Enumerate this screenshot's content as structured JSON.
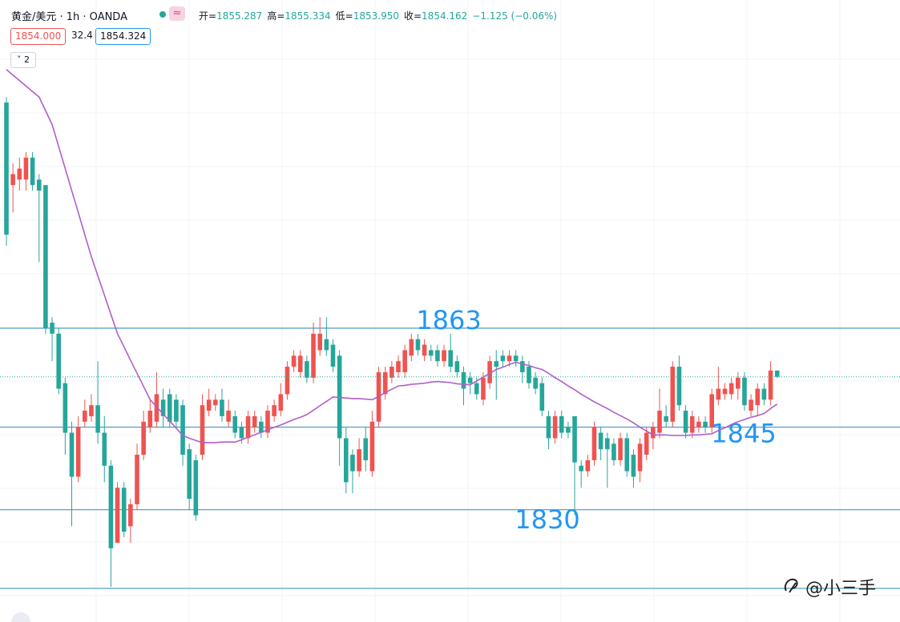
{
  "header": {
    "symbol": "黄金/美元 · 1h · OANDA",
    "ohlc": [
      {
        "label": "开=",
        "value": "1855.287"
      },
      {
        "label": "高=",
        "value": "1855.334"
      },
      {
        "label": "低=",
        "value": "1853.950"
      },
      {
        "label": "收=",
        "value": "1854.162"
      }
    ],
    "change": "−1.125 (−0.06%)",
    "sell": "1854.000",
    "spread": "32.4",
    "buy": "1854.324",
    "indicators": "2"
  },
  "watermark": "@小三手",
  "chart_data": {
    "type": "candlestick",
    "open": [
      1904,
      1889,
      1890,
      1890,
      1894,
      1890,
      1889,
      1864,
      1862,
      1853,
      1844,
      1836,
      1846,
      1847,
      1849,
      1844,
      1838,
      1824,
      1834,
      1827,
      1831,
      1840,
      1845,
      1846,
      1850,
      1851,
      1850,
      1849,
      1841,
      1839,
      1840,
      1848,
      1849,
      1850,
      1846,
      1847,
      1845,
      1843,
      1845,
      1846,
      1844,
      1847,
      1848,
      1851,
      1856,
      1855,
      1857,
      1854,
      1859,
      1861,
      1860,
      1858,
      1843,
      1840,
      1837,
      1843,
      1837,
      1846,
      1851,
      1854,
      1855,
      1855,
      1858,
      1861,
      1858,
      1859,
      1859,
      1857,
      1859,
      1857,
      1855,
      1854,
      1853,
      1850,
      1853,
      1857,
      1858,
      1857,
      1858,
      1857,
      1856,
      1854,
      1853,
      1847,
      1843,
      1847,
      1845,
      1847,
      1838,
      1837,
      1839,
      1844,
      1843,
      1842,
      1839,
      1843,
      1840,
      1837,
      1840,
      1843,
      1844,
      1847,
      1846,
      1856,
      1848,
      1844,
      1845,
      1846,
      1845,
      1850,
      1851,
      1851,
      1852,
      1854,
      1848,
      1849,
      1852,
      1850,
      1855.287
    ],
    "high": [
      1905,
      1893,
      1894,
      1895,
      1895,
      1891,
      1889,
      1865,
      1863,
      1854,
      1846,
      1847,
      1850,
      1851,
      1857,
      1847,
      1839,
      1835,
      1835,
      1832,
      1842,
      1848,
      1850,
      1855,
      1852,
      1852,
      1851,
      1850,
      1842,
      1840,
      1851,
      1852,
      1851,
      1852,
      1850,
      1848,
      1846,
      1848,
      1848,
      1847,
      1849,
      1850,
      1853,
      1857,
      1859,
      1859,
      1858,
      1864,
      1865,
      1865,
      1861,
      1859,
      1845,
      1841,
      1843,
      1845,
      1848,
      1856,
      1856,
      1857,
      1858,
      1860,
      1862,
      1862,
      1861,
      1860,
      1860,
      1860,
      1862,
      1858,
      1856,
      1855,
      1854,
      1855,
      1858,
      1859,
      1859,
      1859,
      1859,
      1858,
      1857,
      1855,
      1854,
      1848,
      1848,
      1848,
      1846,
      1847,
      1839,
      1840,
      1846,
      1845,
      1844,
      1843,
      1844,
      1844,
      1841,
      1843,
      1845,
      1846,
      1852,
      1849,
      1857,
      1858,
      1849,
      1848,
      1847,
      1847,
      1852,
      1856,
      1853,
      1854,
      1855,
      1855,
      1851,
      1853,
      1853,
      1857,
      1855.334
    ],
    "low": [
      1878,
      1884,
      1888,
      1888,
      1888,
      1875,
      1862,
      1857,
      1851,
      1840,
      1827,
      1835,
      1845,
      1846,
      1842,
      1835,
      1816,
      1825,
      1825,
      1824,
      1830,
      1839,
      1844,
      1845,
      1845,
      1845,
      1845,
      1838,
      1830,
      1828,
      1839,
      1847,
      1848,
      1846,
      1845,
      1843,
      1842,
      1842,
      1844,
      1843,
      1843,
      1846,
      1847,
      1850,
      1855,
      1854,
      1853,
      1853,
      1858,
      1858,
      1855,
      1838,
      1833,
      1833,
      1836,
      1837,
      1836,
      1845,
      1850,
      1853,
      1854,
      1854,
      1857,
      1858,
      1857,
      1857,
      1856,
      1856,
      1855,
      1854,
      1849,
      1851,
      1850,
      1849,
      1852,
      1850,
      1856,
      1856,
      1856,
      1853,
      1852,
      1851,
      1847,
      1841,
      1842,
      1843,
      1843,
      1829,
      1834,
      1836,
      1838,
      1839,
      1834,
      1838,
      1838,
      1836,
      1834,
      1835,
      1839,
      1841,
      1843,
      1845,
      1845,
      1848,
      1843,
      1843,
      1844,
      1844,
      1844,
      1849,
      1850,
      1850,
      1850,
      1848,
      1847,
      1847,
      1849,
      1849,
      1853.95
    ],
    "close": [
      1880,
      1891,
      1892,
      1894,
      1889,
      1888,
      1863,
      1862,
      1852,
      1844,
      1836,
      1845,
      1848,
      1849,
      1844,
      1838,
      1823,
      1834,
      1826,
      1831,
      1840,
      1846,
      1848,
      1851,
      1847,
      1846,
      1846,
      1840,
      1832,
      1829,
      1849,
      1850,
      1850,
      1847,
      1848,
      1844,
      1843,
      1847,
      1847,
      1844,
      1848,
      1849,
      1851,
      1856,
      1858,
      1858,
      1854,
      1862,
      1862,
      1859,
      1856,
      1843,
      1835,
      1837,
      1841,
      1839,
      1846,
      1855,
      1855,
      1856,
      1857,
      1859,
      1861,
      1859,
      1860,
      1858,
      1857,
      1859,
      1856,
      1855,
      1852,
      1853,
      1851,
      1854,
      1857,
      1856,
      1857,
      1858,
      1857,
      1855,
      1853,
      1852,
      1848,
      1843,
      1847,
      1844,
      1844,
      1838.6,
      1837,
      1839,
      1845,
      1841,
      1841,
      1839,
      1843,
      1837,
      1836,
      1842,
      1844,
      1845,
      1848,
      1846,
      1856,
      1849,
      1844,
      1847,
      1846,
      1845,
      1851,
      1852,
      1852,
      1853,
      1854,
      1849,
      1850,
      1852,
      1850,
      1855.3,
      1854.162
    ],
    "ma": [
      1910,
      1909,
      1908,
      1907,
      1906,
      1905,
      1902.5,
      1900,
      1896,
      1892,
      1888,
      1884,
      1880,
      1876,
      1872.5,
      1869,
      1865.5,
      1862,
      1859.6,
      1857.2,
      1854.8,
      1852.4,
      1850,
      1848.7,
      1847.4,
      1846.1,
      1844.8,
      1843.5,
      1843,
      1842.6,
      1842.2,
      1842.2,
      1842.2,
      1842.3,
      1842.3,
      1842.3,
      1842.7,
      1843.2,
      1843.6,
      1844.1,
      1844.5,
      1845,
      1845.4,
      1845.9,
      1846.4,
      1846.8,
      1847.3,
      1848.1,
      1848.9,
      1849.7,
      1850.5,
      1850.4,
      1850.3,
      1850.2,
      1850.2,
      1850.1,
      1850,
      1850.6,
      1851.3,
      1851.9,
      1852.5,
      1852.6,
      1852.8,
      1852.9,
      1853,
      1853.2,
      1853.3,
      1853.2,
      1853.1,
      1852.9,
      1852.8,
      1852.7,
      1853.4,
      1854.1,
      1854.8,
      1855.5,
      1855.9,
      1856.4,
      1856.8,
      1856.5,
      1856.2,
      1855.8,
      1855.5,
      1854.8,
      1854,
      1853.3,
      1852.5,
      1851.8,
      1851,
      1850.3,
      1849.6,
      1849,
      1848.4,
      1847.7,
      1847.1,
      1846.5,
      1845.8,
      1845,
      1844.3,
      1843.6,
      1843.6,
      1843.6,
      1843.5,
      1843.5,
      1843.5,
      1843.6,
      1843.6,
      1843.7,
      1843.8,
      1844.4,
      1844.9,
      1845.5,
      1846,
      1846.4,
      1846.8,
      1847.1,
      1847.5,
      1848.4,
      1849.2
    ],
    "up_color": "#ef5350",
    "down_color": "#26a69a",
    "ma_color": "#b05fc9",
    "level_color": "#2a8ab8",
    "levels": [
      1863,
      1845,
      1830
    ],
    "ylim": [
      1809.6,
      1911
    ],
    "grid": true,
    "current_price_line": true
  }
}
